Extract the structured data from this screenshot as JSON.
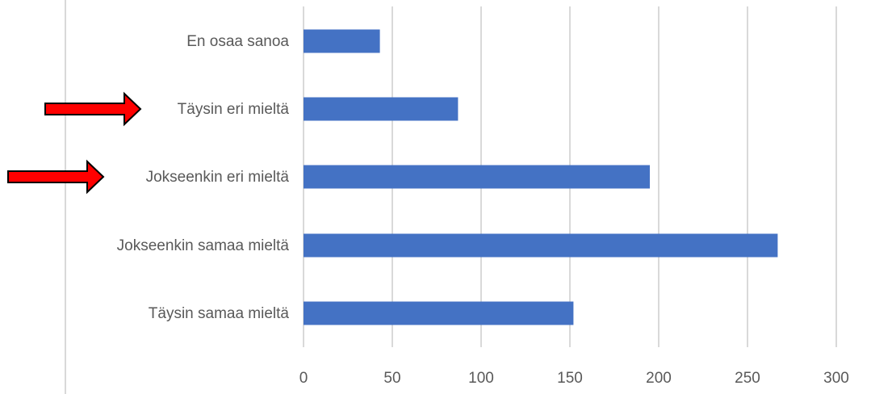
{
  "chart_data": {
    "type": "bar",
    "orientation": "horizontal",
    "categories": [
      "En osaa sanoa",
      "Täysin eri mieltä",
      "Jokseenkin eri mieltä",
      "Jokseenkin samaa mieltä",
      "Täysin samaa mieltä"
    ],
    "values": [
      43,
      87,
      195,
      267,
      152
    ],
    "xlim": [
      0,
      300
    ],
    "x_ticks": [
      0,
      50,
      100,
      150,
      200,
      250,
      300
    ],
    "grid": true,
    "bar_color": "#4472c4",
    "title": "",
    "xlabel": "",
    "ylabel": "",
    "annotations": [
      {
        "type": "arrow",
        "color": "#ff0000",
        "points_to": "Täysin eri mieltä"
      },
      {
        "type": "arrow",
        "color": "#ff0000",
        "points_to": "Jokseenkin eri mieltä"
      }
    ]
  }
}
